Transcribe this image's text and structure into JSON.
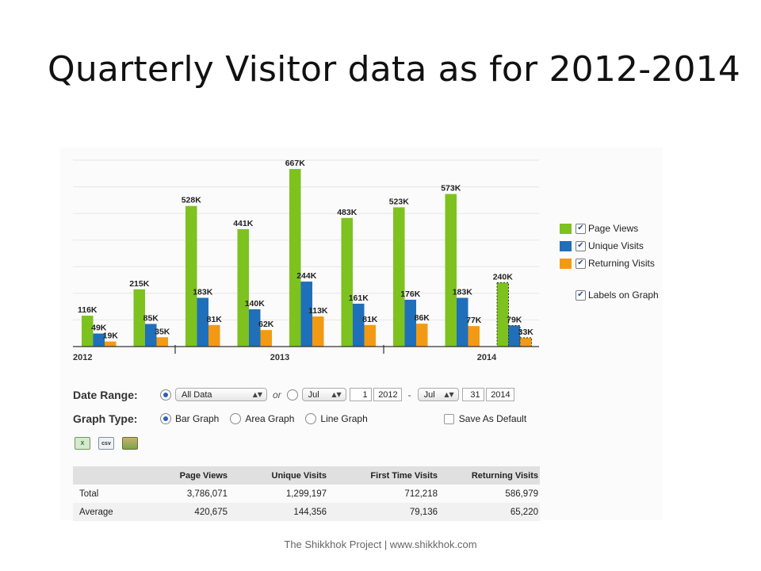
{
  "slide": {
    "title": "Quarterly Visitor data as for 2012-2014",
    "footer": "The Shikkhok Project | www.shikkhok.com"
  },
  "chart_data": {
    "type": "bar",
    "title": "",
    "xlabel": "",
    "ylabel": "",
    "ylim": [
      0,
      700000
    ],
    "grid": true,
    "legend_position": "right",
    "year_labels": [
      "2012",
      "2013",
      "2014"
    ],
    "series": [
      {
        "name": "Page Views",
        "color": "#7dc21e",
        "values": [
          116000,
          215000,
          528000,
          441000,
          667000,
          483000,
          523000,
          573000,
          240000
        ],
        "labels": [
          "116K",
          "215K",
          "528K",
          "441K",
          "667K",
          "483K",
          "523K",
          "573K",
          "240K"
        ]
      },
      {
        "name": "Unique Visits",
        "color": "#1f6fba",
        "values": [
          49000,
          85000,
          183000,
          140000,
          244000,
          161000,
          176000,
          183000,
          79000
        ],
        "labels": [
          "49K",
          "85K",
          "183K",
          "140K",
          "244K",
          "161K",
          "176K",
          "183K",
          "79K"
        ]
      },
      {
        "name": "Returning Visits",
        "color": "#f39a14",
        "values": [
          19000,
          35000,
          81000,
          62000,
          113000,
          81000,
          86000,
          77000,
          33000
        ],
        "labels": [
          "19K",
          "35K",
          "81K",
          "62K",
          "113K",
          "81K",
          "86K",
          "77K",
          "33K"
        ]
      }
    ],
    "partial_last_group": true
  },
  "legend": {
    "items": [
      "Page Views",
      "Unique Visits",
      "Returning Visits"
    ],
    "check_mark": "✔",
    "labels_on_graph": "Labels on Graph"
  },
  "controls": {
    "date_range_label": "Date Range:",
    "date_range_select": "All Data",
    "or_text": "or",
    "start_month": "Jul",
    "start_day": "1",
    "start_year": "2012",
    "dash": "-",
    "end_month": "Jul",
    "end_day": "31",
    "end_year": "2014",
    "graph_type_label": "Graph Type:",
    "graph_types": [
      "Bar Graph",
      "Area Graph",
      "Line Graph"
    ],
    "selected_graph_type": "Bar Graph",
    "save_default": "Save As Default",
    "export_icons": [
      "excel-export-icon",
      "csv-export-icon",
      "image-export-icon"
    ],
    "csv_text": "csv"
  },
  "table": {
    "columns": [
      "",
      "Page Views",
      "Unique Visits",
      "First Time Visits",
      "Returning Visits"
    ],
    "rows": [
      [
        "Total",
        "3,786,071",
        "1,299,197",
        "712,218",
        "586,979"
      ],
      [
        "Average",
        "420,675",
        "144,356",
        "79,136",
        "65,220"
      ]
    ]
  }
}
